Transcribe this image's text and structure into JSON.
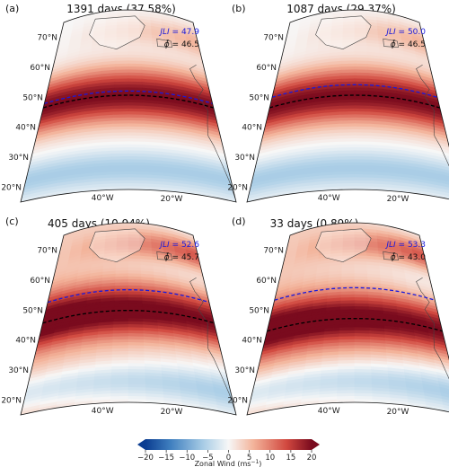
{
  "chart_data": {
    "type": "heatmap",
    "colorbar": {
      "label": "Zonal Wind (ms",
      "label_sup": "−1",
      "label_end": ")",
      "ticks": [
        "−20",
        "−15",
        "−10",
        "−5",
        "0",
        "5",
        "10",
        "15",
        "20"
      ],
      "range": [
        -20,
        20
      ],
      "extend": "both"
    },
    "lat_ticks": [
      "70°N",
      "60°N",
      "50°N",
      "40°N",
      "30°N",
      "20°N"
    ],
    "lon_ticks": [
      "40°W",
      "20°W"
    ],
    "panels": [
      {
        "label": "(a)",
        "title": "1391 days (37.58%)",
        "jli_label": "JLI",
        "jli_value": "= 47.9",
        "phi_value": "= 46.5",
        "jli": 47.9,
        "phi": 46.5
      },
      {
        "label": "(b)",
        "title": "1087 days (29.37%)",
        "jli_label": "JLI",
        "jli_value": "= 50.0",
        "phi_value": "= 46.5",
        "jli": 50.0,
        "phi": 46.5
      },
      {
        "label": "(c)",
        "title": "405 days (10.94%)",
        "jli_label": "JLI",
        "jli_value": "= 52.6",
        "phi_value": "= 45.7",
        "jli": 52.6,
        "phi": 45.7
      },
      {
        "label": "(d)",
        "title": "33 days (0.89%)",
        "jli_label": "JLI",
        "jli_value": "= 53.3",
        "phi_value": "= 43.0",
        "jli": 53.3,
        "phi": 43.0
      }
    ],
    "colors": {
      "jli_line": "#1a1adb",
      "phi_line": "#000000",
      "neg": "#2166ac",
      "pos": "#b2182b"
    }
  }
}
